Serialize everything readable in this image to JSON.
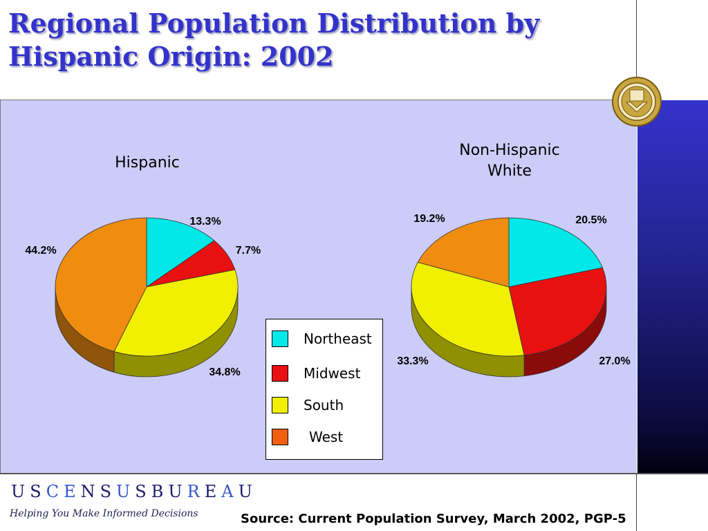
{
  "slide": {
    "title": "Regional Population Distribution by Hispanic Origin:  2002",
    "source": "Source:  Current Population Survey, March 2002, PGP-5",
    "tagline": "Helping You Make Informed Decisions",
    "brand_letters": [
      {
        "char": "U",
        "color": "#1c1c6a"
      },
      {
        "char": "S",
        "color": "#1c1c6a"
      },
      {
        "char": "C",
        "color": "#3355cc"
      },
      {
        "char": "E",
        "color": "#3355cc"
      },
      {
        "char": "N",
        "color": "#1c1c6a"
      },
      {
        "char": "S",
        "color": "#1c1c6a"
      },
      {
        "char": "U",
        "color": "#3355cc"
      },
      {
        "char": "S",
        "color": "#1c1c6a"
      },
      {
        "char": "B",
        "color": "#1c1c6a"
      },
      {
        "char": "U",
        "color": "#1c1c6a"
      },
      {
        "char": "R",
        "color": "#3355cc"
      },
      {
        "char": "E",
        "color": "#1c1c6a"
      },
      {
        "char": "A",
        "color": "#3355cc"
      },
      {
        "char": "U",
        "color": "#1c1c6a"
      }
    ],
    "title_color": "#3333cc",
    "plot_background": "#ccccf8"
  },
  "chart_data": [
    {
      "type": "pie",
      "title": "Hispanic",
      "categories": [
        "Northeast",
        "Midwest",
        "South",
        "West"
      ],
      "values": [
        13.3,
        7.7,
        34.8,
        44.2
      ],
      "labels": [
        "13.3%",
        "7.7%",
        "34.8%",
        "44.2%"
      ],
      "colors": [
        "#00e8e8",
        "#e81010",
        "#f0f000",
        "#f08c10"
      ],
      "legend": "center"
    },
    {
      "type": "pie",
      "title": "Non-Hispanic\nWhite",
      "categories": [
        "Northeast",
        "Midwest",
        "South",
        "West"
      ],
      "values": [
        20.5,
        27.0,
        33.3,
        19.2
      ],
      "labels": [
        "20.5%",
        "27.0%",
        "33.3%",
        "19.2%"
      ],
      "colors": [
        "#00e8e8",
        "#e81010",
        "#f0f000",
        "#f08c10"
      ],
      "legend": "center"
    }
  ],
  "legend": {
    "items": [
      {
        "label": "Northeast",
        "color": "#00e8e8"
      },
      {
        "label": "Midwest",
        "color": "#e81010"
      },
      {
        "label": "South",
        "color": "#f0f000"
      },
      {
        "label": "West",
        "color": "#f06010"
      }
    ]
  }
}
